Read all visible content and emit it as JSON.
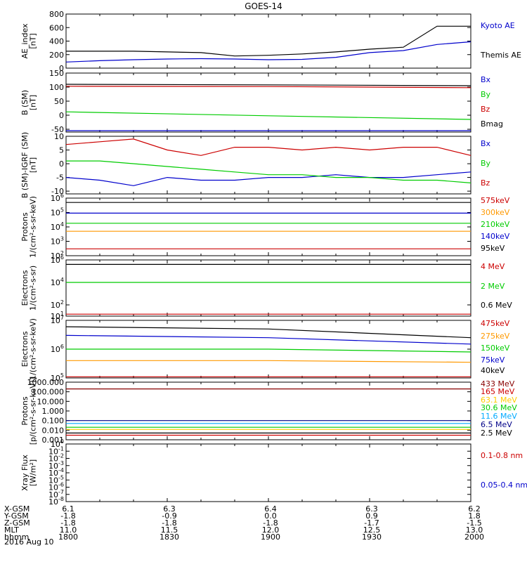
{
  "title": "GOES-14",
  "date_label": "2016 Aug 10",
  "chart_data": [
    {
      "type": "line",
      "id": "ae",
      "ylabel": [
        "AE_index",
        "[nT]"
      ],
      "ylim": [
        0,
        800
      ],
      "yticks": [
        {
          "v": 0,
          "label": "0"
        },
        {
          "v": 200,
          "label": "200"
        },
        {
          "v": 400,
          "label": "400"
        },
        {
          "v": 600,
          "label": "600"
        },
        {
          "v": 800,
          "label": "800"
        }
      ],
      "x": [
        0,
        10,
        20,
        30,
        40,
        50,
        60,
        70,
        80,
        90,
        100,
        110,
        120
      ],
      "series": [
        {
          "name": "Kyoto AE",
          "color": "#0000cc",
          "values": [
            90,
            110,
            125,
            135,
            140,
            135,
            125,
            130,
            160,
            230,
            260,
            350,
            390
          ]
        },
        {
          "name": "Themis AE",
          "color": "#000000",
          "values": [
            250,
            250,
            250,
            240,
            230,
            180,
            190,
            210,
            240,
            280,
            310,
            620,
            620
          ]
        }
      ]
    },
    {
      "type": "line",
      "id": "bsm",
      "ylabel": [
        "B (SM)",
        "[nT]"
      ],
      "ylim": [
        -60,
        150
      ],
      "yticks": [
        {
          "v": -50,
          "label": "-50"
        },
        {
          "v": 0,
          "label": "0"
        },
        {
          "v": 50,
          "label": "50"
        },
        {
          "v": 100,
          "label": "100"
        },
        {
          "v": 150,
          "label": "150"
        }
      ],
      "x": [
        0,
        60,
        120
      ],
      "series": [
        {
          "name": "Bx",
          "color": "#0000cc",
          "values": [
            -55,
            -55,
            -55
          ]
        },
        {
          "name": "By",
          "color": "#00cc00",
          "values": [
            12,
            -2,
            -15
          ]
        },
        {
          "name": "Bz",
          "color": "#cc0000",
          "values": [
            103,
            102,
            98
          ]
        },
        {
          "name": "Bmag",
          "color": "#000000",
          "values": [
            110,
            108,
            105
          ]
        }
      ]
    },
    {
      "type": "line",
      "id": "bigrf",
      "ylabel": [
        "B (SM)-IGRF (SM)",
        "[nT]"
      ],
      "ylim": [
        -11,
        10
      ],
      "yticks": [
        {
          "v": -10,
          "label": "-10"
        },
        {
          "v": -5,
          "label": "-5"
        },
        {
          "v": 0,
          "label": "0"
        },
        {
          "v": 5,
          "label": "5"
        },
        {
          "v": 10,
          "label": "10"
        }
      ],
      "x": [
        0,
        10,
        20,
        30,
        40,
        50,
        60,
        70,
        80,
        90,
        100,
        110,
        120
      ],
      "series": [
        {
          "name": "Bx",
          "color": "#0000cc",
          "values": [
            -5,
            -6,
            -8,
            -5,
            -6,
            -6,
            -5,
            -5,
            -4,
            -5,
            -5,
            -4,
            -3
          ]
        },
        {
          "name": "By",
          "color": "#00cc00",
          "values": [
            1,
            1,
            0,
            -1,
            -2,
            -3,
            -4,
            -4,
            -5,
            -5,
            -6,
            -6,
            -7
          ]
        },
        {
          "name": "Bz",
          "color": "#cc0000",
          "values": [
            7,
            8,
            9,
            5,
            3,
            6,
            6,
            5,
            6,
            5,
            6,
            6,
            3
          ]
        }
      ]
    },
    {
      "type": "line",
      "id": "protons-mag",
      "ylabel": [
        "Protons",
        "1/(cm²-s-sr-keV)"
      ],
      "log": true,
      "ylim": [
        100,
        1000000
      ],
      "yticks": [
        {
          "v": 100,
          "base": "10",
          "exp": "2"
        },
        {
          "v": 1000,
          "base": "10",
          "exp": "3"
        },
        {
          "v": 10000,
          "base": "10",
          "exp": "4"
        },
        {
          "v": 100000,
          "base": "10",
          "exp": "5"
        },
        {
          "v": 1000000,
          "base": "10",
          "exp": "6"
        }
      ],
      "x": [
        0,
        60,
        120
      ],
      "series": [
        {
          "name": "575keV",
          "color": "#cc0000",
          "values": [
            300,
            300,
            300
          ]
        },
        {
          "name": "300keV",
          "color": "#ff9900",
          "values": [
            5000,
            5000,
            5000
          ]
        },
        {
          "name": "210keV",
          "color": "#00cc00",
          "values": [
            18000,
            18000,
            18000
          ]
        },
        {
          "name": "140keV",
          "color": "#0000cc",
          "values": [
            90000,
            90000,
            90000
          ]
        },
        {
          "name": "95keV",
          "color": "#000000",
          "values": [
            500000,
            500000,
            500000
          ]
        }
      ]
    },
    {
      "type": "line",
      "id": "electrons-mev",
      "ylabel": [
        "Electrons",
        "1/(cm²-s-sr)"
      ],
      "log": true,
      "ylim": [
        10,
        1000000
      ],
      "yticks": [
        {
          "v": 10,
          "base": "10",
          "exp": "1"
        },
        {
          "v": 100,
          "base": "10",
          "exp": "2"
        },
        {
          "v": 10000,
          "base": "10",
          "exp": "4"
        },
        {
          "v": 1000000,
          "base": "10",
          "exp": "6"
        }
      ],
      "x": [
        0,
        60,
        120
      ],
      "series": [
        {
          "name": "4 MeV",
          "color": "#cc0000",
          "values": [
            15,
            15,
            15
          ]
        },
        {
          "name": "2 MeV",
          "color": "#00cc00",
          "values": [
            10000,
            10000,
            10000
          ]
        },
        {
          "name": "0.6 MeV",
          "color": "#000000",
          "values": [
            400000,
            400000,
            400000
          ]
        }
      ]
    },
    {
      "type": "line",
      "id": "electrons-kev",
      "ylabel": [
        "Electrons",
        "1/(cm²-s-sr-keV)"
      ],
      "log": true,
      "ylim": [
        100000,
        10000000
      ],
      "yticks": [
        {
          "v": 100000,
          "base": "10",
          "exp": "5"
        },
        {
          "v": 1000000,
          "base": "10",
          "exp": "6"
        },
        {
          "v": 10000000,
          "base": "10",
          "exp": "7"
        }
      ],
      "x": [
        0,
        60,
        120
      ],
      "series": [
        {
          "name": "475keV",
          "color": "#cc0000",
          "values": [
            110000,
            110000,
            110000
          ]
        },
        {
          "name": "275keV",
          "color": "#ff9900",
          "values": [
            400000,
            400000,
            350000
          ]
        },
        {
          "name": "150keV",
          "color": "#00cc00",
          "values": [
            1000000,
            1000000,
            800000
          ]
        },
        {
          "name": "75keV",
          "color": "#0000cc",
          "values": [
            3000000,
            2500000,
            1500000
          ]
        },
        {
          "name": "40keV",
          "color": "#000000",
          "values": [
            6000000,
            5000000,
            2500000
          ]
        }
      ]
    },
    {
      "type": "line",
      "id": "protons-hi",
      "ylabel": [
        "Protons",
        "[p/(cm²-s-sr-keV)]"
      ],
      "log": true,
      "ylim": [
        0.001,
        1000
      ],
      "yticks": [
        {
          "v": 0.001,
          "label": "0.001"
        },
        {
          "v": 0.01,
          "label": "0.010"
        },
        {
          "v": 0.1,
          "label": "0.100"
        },
        {
          "v": 1,
          "label": "1.000"
        },
        {
          "v": 10,
          "label": "10.000"
        },
        {
          "v": 100,
          "label": "100.000"
        },
        {
          "v": 1000,
          "label": "1000.000"
        }
      ],
      "x": [
        0,
        60,
        120
      ],
      "series": [
        {
          "name": "433 MeV",
          "color": "#880000",
          "values": [
            200,
            200,
            200
          ]
        },
        {
          "name": "165 MeV",
          "color": "#cc0000",
          "values": [
            0.003,
            0.003,
            0.003
          ]
        },
        {
          "name": "63.1 MeV",
          "color": "#ffcc00",
          "values": [
            0.012,
            0.012,
            0.012
          ]
        },
        {
          "name": "30.6 MeV",
          "color": "#00cc00",
          "values": [
            0.02,
            0.02,
            0.02
          ]
        },
        {
          "name": "11.6 MeV",
          "color": "#00aaff",
          "values": [
            0.05,
            0.05,
            0.05
          ]
        },
        {
          "name": "6.5 MeV",
          "color": "#000088",
          "values": [
            0.1,
            0.1,
            0.1
          ]
        },
        {
          "name": "2.5 MeV",
          "color": "#000000",
          "values": [
            0.005,
            0.005,
            0.005
          ]
        }
      ]
    },
    {
      "type": "line",
      "id": "xray",
      "ylabel": [
        "Xray Flux",
        "[W/m²]"
      ],
      "log": true,
      "ylim": [
        1e-08,
        1
      ],
      "yticks": [
        {
          "v": 1,
          "base": "10",
          "exp": "0"
        },
        {
          "v": 0.1,
          "base": "10",
          "exp": "-1"
        },
        {
          "v": 0.01,
          "base": "10",
          "exp": "-2"
        },
        {
          "v": 0.001,
          "base": "10",
          "exp": "-3"
        },
        {
          "v": 0.0001,
          "base": "10",
          "exp": "-4"
        },
        {
          "v": 1e-05,
          "base": "10",
          "exp": "-5"
        },
        {
          "v": 1e-06,
          "base": "10",
          "exp": "-6"
        },
        {
          "v": 1e-07,
          "base": "10",
          "exp": "-7"
        },
        {
          "v": 1e-08,
          "base": "10",
          "exp": "-8"
        }
      ],
      "x": [],
      "series": [
        {
          "name": "0.1-0.8 nm",
          "color": "#cc0000",
          "values": []
        },
        {
          "name": "0.05-0.4 nm",
          "color": "#0000cc",
          "values": []
        }
      ]
    }
  ],
  "orbit_table": {
    "row_labels": [
      "X-GSM",
      "Y-GSM",
      "Z-GSM",
      "MLT",
      "hhmm"
    ],
    "columns": [
      {
        "values": [
          "6.1",
          "-1.8",
          "-1.8",
          "11.0",
          "1800"
        ]
      },
      {
        "values": [
          "6.3",
          "-0.9",
          "-1.8",
          "11.5",
          "1830"
        ]
      },
      {
        "values": [
          "6.4",
          "0.0",
          "-1.8",
          "12.0",
          "1900"
        ]
      },
      {
        "values": [
          "6.3",
          "0.9",
          "-1.7",
          "12.5",
          "1930"
        ]
      },
      {
        "values": [
          "6.2",
          "1.8",
          "-1.5",
          "13.0",
          "2000"
        ]
      }
    ]
  }
}
